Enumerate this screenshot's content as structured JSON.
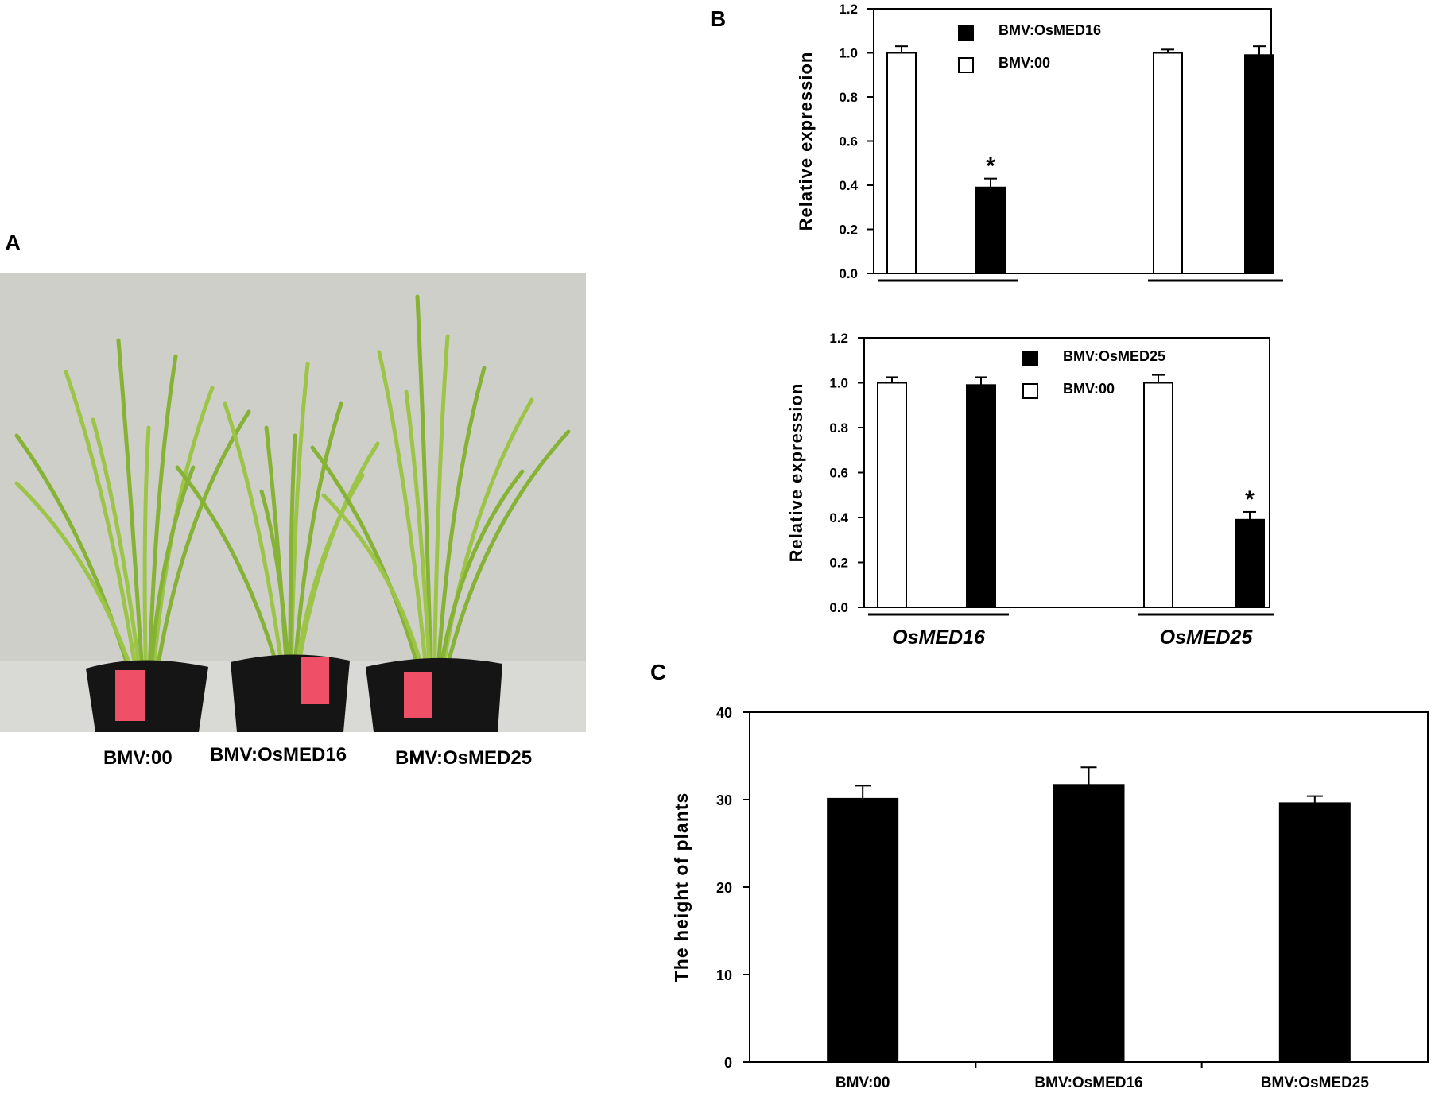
{
  "panels": {
    "a": {
      "letter": "A",
      "captions": [
        "BMV:00",
        "BMV:OsMED16",
        "BMV:OsMED25"
      ]
    },
    "b": {
      "letter": "B"
    },
    "c": {
      "letter": "C"
    }
  },
  "colors": {
    "filled_bar": "#000000",
    "open_bar": "#ffffff",
    "axis": "#000000",
    "photo_wall": "#c9c9c3",
    "pot": "#141414",
    "tag": "#f0506a",
    "leaf": "#8dbb3c"
  },
  "chart_data": [
    {
      "id": "B1",
      "type": "bar",
      "ylabel": "Relative expression",
      "ylim": [
        0,
        1.2
      ],
      "yticks": [
        "0.0",
        "0.2",
        "0.4",
        "0.6",
        "0.8",
        "1.0",
        "1.2"
      ],
      "groups": [
        "OsMED16",
        "OsMED25"
      ],
      "show_group_labels": false,
      "legend": [
        {
          "name": "BMV:OsMED16",
          "fill": "black"
        },
        {
          "name": "BMV:00",
          "fill": "white"
        }
      ],
      "bars": [
        {
          "group": 0,
          "series": "BMV:00",
          "value": 1.0,
          "err": 0.03,
          "star": false
        },
        {
          "group": 0,
          "series": "BMV:OsMED16",
          "value": 0.39,
          "err": 0.04,
          "star": true
        },
        {
          "group": 1,
          "series": "BMV:00",
          "value": 1.0,
          "err": 0.015,
          "star": false
        },
        {
          "group": 1,
          "series": "BMV:OsMED16",
          "value": 0.99,
          "err": 0.04,
          "star": false
        }
      ],
      "annotation": "*"
    },
    {
      "id": "B2",
      "type": "bar",
      "ylabel": "Relative expression",
      "ylim": [
        0,
        1.2
      ],
      "yticks": [
        "0.0",
        "0.2",
        "0.4",
        "0.6",
        "0.8",
        "1.0",
        "1.2"
      ],
      "groups": [
        "OsMED16",
        "OsMED25"
      ],
      "show_group_labels": true,
      "legend": [
        {
          "name": "BMV:OsMED25",
          "fill": "black"
        },
        {
          "name": "BMV:00",
          "fill": "white"
        }
      ],
      "bars": [
        {
          "group": 0,
          "series": "BMV:00",
          "value": 1.0,
          "err": 0.025,
          "star": false
        },
        {
          "group": 0,
          "series": "BMV:OsMED25",
          "value": 0.99,
          "err": 0.035,
          "star": false
        },
        {
          "group": 1,
          "series": "BMV:00",
          "value": 1.0,
          "err": 0.035,
          "star": false
        },
        {
          "group": 1,
          "series": "BMV:OsMED25",
          "value": 0.39,
          "err": 0.035,
          "star": true
        }
      ],
      "annotation": "*"
    },
    {
      "id": "C",
      "type": "bar",
      "ylabel": "The height of plants",
      "ylim": [
        0,
        40
      ],
      "yticks": [
        "0",
        "10",
        "20",
        "30",
        "40"
      ],
      "categories": [
        "BMV:00",
        "BMV:OsMED16",
        "BMV:OsMED25"
      ],
      "values": [
        30.1,
        31.7,
        29.6
      ],
      "errors": [
        1.5,
        2.0,
        0.8
      ]
    }
  ]
}
